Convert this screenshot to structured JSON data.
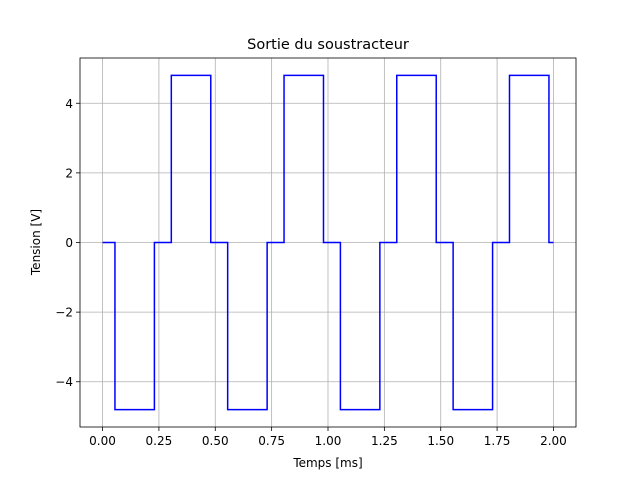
{
  "chart_data": {
    "type": "line",
    "title": "Sortie du soustracteur",
    "xlabel": "Temps [ms]",
    "ylabel": "Tension [V]",
    "xlim": [
      -0.1,
      2.1
    ],
    "ylim": [
      -5.3,
      5.3
    ],
    "grid": true,
    "x_ticks": [
      0.0,
      0.25,
      0.5,
      0.75,
      1.0,
      1.25,
      1.5,
      1.75,
      2.0
    ],
    "x_tick_labels": [
      "0.00",
      "0.25",
      "0.50",
      "0.75",
      "1.00",
      "1.25",
      "1.50",
      "1.75",
      "2.00"
    ],
    "y_ticks": [
      -4,
      -2,
      0,
      2,
      4
    ],
    "y_tick_labels": [
      "−4",
      "−2",
      "0",
      "2",
      "4"
    ],
    "series": [
      {
        "color": "#0000ff",
        "x": [
          0.0,
          0.055,
          0.055,
          0.23,
          0.23,
          0.305,
          0.305,
          0.48,
          0.48,
          0.555,
          0.555,
          0.73,
          0.73,
          0.805,
          0.805,
          0.98,
          0.98,
          1.055,
          1.055,
          1.23,
          1.23,
          1.305,
          1.305,
          1.48,
          1.48,
          1.555,
          1.555,
          1.73,
          1.73,
          1.805,
          1.805,
          1.98,
          1.98,
          2.0
        ],
        "y": [
          0,
          0,
          -4.8,
          -4.8,
          0,
          0,
          4.8,
          4.8,
          0,
          0,
          -4.8,
          -4.8,
          0,
          0,
          4.8,
          4.8,
          0,
          0,
          -4.8,
          -4.8,
          0,
          0,
          4.8,
          4.8,
          0,
          0,
          -4.8,
          -4.8,
          0,
          0,
          4.8,
          4.8,
          0,
          0
        ]
      }
    ]
  }
}
